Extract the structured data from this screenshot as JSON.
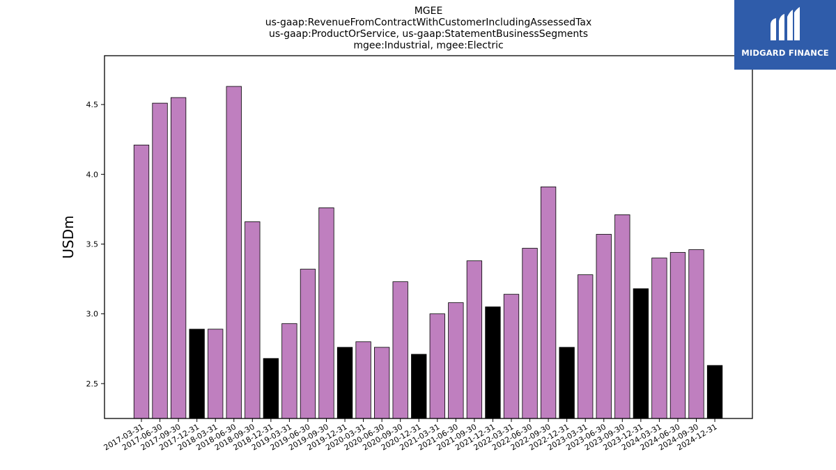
{
  "chart_data": {
    "type": "bar",
    "title_lines": [
      "MGEE",
      "us-gaap:RevenueFromContractWithCustomerIncludingAssessedTax",
      "us-gaap:ProductOrService, us-gaap:StatementBusinessSegments",
      "mgee:Industrial, mgee:Electric"
    ],
    "ylabel": "USDm",
    "xlabel": "",
    "ylim": [
      2.25,
      4.85
    ],
    "yticks": [
      "2.5",
      "3.0",
      "3.5",
      "4.0",
      "4.5"
    ],
    "grid": false,
    "categories": [
      "2017-03-31",
      "2017-06-30",
      "2017-09-30",
      "2017-12-31",
      "2018-03-31",
      "2018-06-30",
      "2018-09-30",
      "2018-12-31",
      "2019-03-31",
      "2019-06-30",
      "2019-09-30",
      "2019-12-31",
      "2020-03-31",
      "2020-06-30",
      "2020-09-30",
      "2020-12-31",
      "2021-03-31",
      "2021-06-30",
      "2021-09-30",
      "2021-12-31",
      "2022-03-31",
      "2022-06-30",
      "2022-09-30",
      "2022-12-31",
      "2023-03-31",
      "2023-06-30",
      "2023-09-30",
      "2023-12-31",
      "2024-03-31",
      "2024-06-30",
      "2024-09-30",
      "2024-12-31"
    ],
    "values": [
      4.21,
      4.51,
      4.55,
      2.89,
      2.89,
      4.63,
      3.66,
      2.68,
      2.93,
      3.32,
      3.76,
      2.76,
      2.8,
      2.76,
      3.23,
      2.71,
      3.0,
      3.08,
      3.38,
      3.05,
      3.14,
      3.47,
      3.91,
      2.76,
      3.28,
      3.57,
      3.71,
      3.18,
      3.4,
      3.44,
      3.46,
      2.63
    ],
    "colors": {
      "quarter": "#bf7fbf",
      "year_end": "#000000",
      "edge": "#000000"
    }
  },
  "logo": {
    "text": "MIDGARD FINANCE",
    "background": "#2f5caa"
  }
}
